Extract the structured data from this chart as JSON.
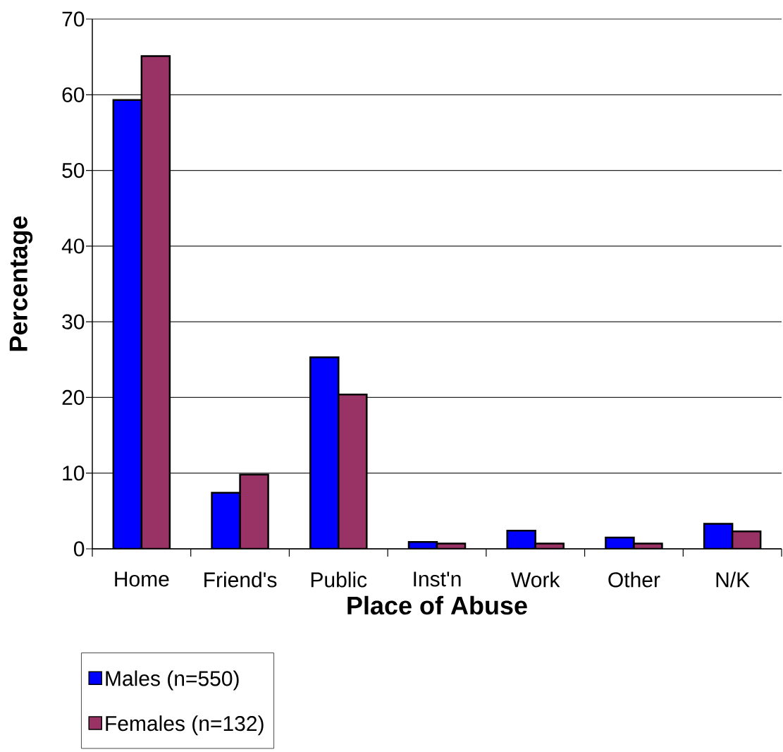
{
  "chart_data": {
    "type": "bar",
    "xlabel": "Place of Abuse",
    "ylabel": "Percentage",
    "categories": [
      "Home",
      "Friend's",
      "Public",
      "Inst'n",
      "Work",
      "Other",
      "N/K"
    ],
    "series": [
      {
        "name": "Males (n=550)",
        "color": "#0000ff",
        "values": [
          59.3,
          7.4,
          25.3,
          0.9,
          2.4,
          1.5,
          3.3
        ]
      },
      {
        "name": "Females (n=132)",
        "color": "#993366",
        "values": [
          65.1,
          9.8,
          20.4,
          0.7,
          0.7,
          0.7,
          2.3
        ]
      }
    ],
    "ylim": [
      0,
      70
    ],
    "yticks": [
      0,
      10,
      20,
      30,
      40,
      50,
      60,
      70
    ],
    "grid": "y",
    "legend": "bottom left"
  }
}
